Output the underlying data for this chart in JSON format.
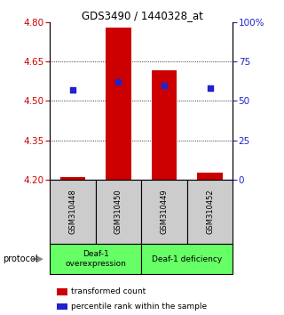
{
  "title": "GDS3490 / 1440328_at",
  "samples": [
    "GSM310448",
    "GSM310450",
    "GSM310449",
    "GSM310452"
  ],
  "bar_values": [
    4.21,
    4.78,
    4.615,
    4.225
  ],
  "bar_base": 4.2,
  "percentile_values": [
    57,
    62,
    60,
    58
  ],
  "ylim": [
    4.2,
    4.8
  ],
  "yticks_left": [
    4.2,
    4.35,
    4.5,
    4.65,
    4.8
  ],
  "yticks_right": [
    0,
    25,
    50,
    75,
    100
  ],
  "bar_color": "#cc0000",
  "blue_color": "#2222cc",
  "left_tick_color": "#cc0000",
  "right_tick_color": "#2222cc",
  "sample_bg": "#cccccc",
  "group1_label": "Deaf-1\noverexpression",
  "group2_label": "Deaf-1 deficiency",
  "group_bg": "#66ff66",
  "legend_red": "transformed count",
  "legend_blue": "percentile rank within the sample",
  "protocol_label": "protocol",
  "bar_width": 0.55
}
